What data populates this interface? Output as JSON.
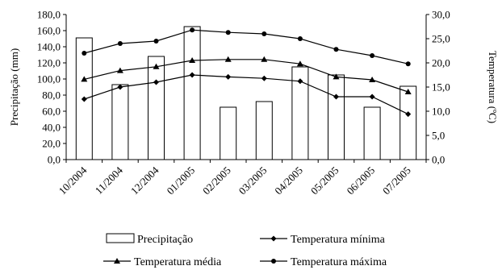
{
  "chart_data": {
    "type": "bar+line",
    "categories": [
      "10/2004",
      "11/2004",
      "12/2004",
      "01/2005",
      "02/2005",
      "03/2005",
      "04/2005",
      "05/2005",
      "06/2005",
      "07/2005"
    ],
    "left_axis": {
      "label": "Precipitação (mm)",
      "range": [
        0,
        180
      ],
      "ticks": [
        "0,0",
        "20,0",
        "40,0",
        "60,0",
        "80,0",
        "100,0",
        "120,0",
        "140,0",
        "160,0",
        "180,0"
      ]
    },
    "right_axis": {
      "label": "Temperatura (ºC)",
      "range": [
        0,
        30
      ],
      "ticks": [
        "0,0",
        "5,0",
        "10,0",
        "15,0",
        "20,0",
        "25,0",
        "30,0"
      ]
    },
    "bars": {
      "name": "Precipitação",
      "axis": "left",
      "values": [
        151,
        93,
        128,
        165,
        65,
        72,
        115,
        105,
        65,
        91
      ]
    },
    "series": [
      {
        "name": "Temperatura mínima",
        "axis": "right",
        "marker": "diamond",
        "values": [
          12.5,
          15.0,
          16.0,
          17.5,
          17.1,
          16.8,
          16.2,
          13.0,
          13.0,
          9.4
        ]
      },
      {
        "name": "Temperatura média",
        "axis": "right",
        "marker": "triangle",
        "values": [
          16.6,
          18.4,
          19.2,
          20.5,
          20.7,
          20.7,
          19.8,
          17.1,
          16.5,
          14.0
        ]
      },
      {
        "name": "Temperatura máxima",
        "axis": "right",
        "marker": "circle",
        "values": [
          22.0,
          24.0,
          24.5,
          26.8,
          26.3,
          26.0,
          25.0,
          22.8,
          21.5,
          19.8
        ]
      }
    ],
    "legend_position": "bottom",
    "grid": false
  }
}
